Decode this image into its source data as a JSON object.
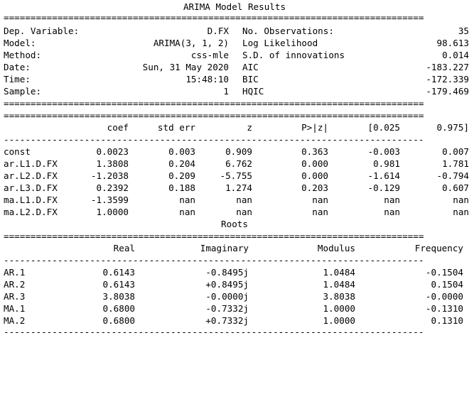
{
  "title": "ARIMA Model Results",
  "roots_title": "Roots",
  "double_rule": "==============================================================================",
  "single_rule": "------------------------------------------------------------------------------",
  "summary": {
    "left": [
      {
        "label": "Dep. Variable:",
        "value": "D.FX"
      },
      {
        "label": "Model:",
        "value": "ARIMA(3, 1, 2)"
      },
      {
        "label": "Method:",
        "value": "css-mle"
      },
      {
        "label": "Date:",
        "value": "Sun, 31 May 2020"
      },
      {
        "label": "Time:",
        "value": "15:48:10"
      },
      {
        "label": "Sample:",
        "value": "1"
      }
    ],
    "right": [
      {
        "label": "No. Observations:",
        "value": "35"
      },
      {
        "label": "Log Likelihood",
        "value": "98.613"
      },
      {
        "label": "S.D. of innovations",
        "value": "0.014"
      },
      {
        "label": "AIC",
        "value": "-183.227"
      },
      {
        "label": "BIC",
        "value": "-172.339"
      },
      {
        "label": "HQIC",
        "value": "-179.469"
      }
    ]
  },
  "coef_table": {
    "headers": [
      "coef",
      "std err",
      "z",
      "P>|z|",
      "[0.025",
      "0.975]"
    ],
    "rows": [
      {
        "name": "const",
        "values": [
          "0.0023",
          "0.003",
          "0.909",
          "0.363",
          "-0.003",
          "0.007"
        ]
      },
      {
        "name": "ar.L1.D.FX",
        "values": [
          "1.3808",
          "0.204",
          "6.762",
          "0.000",
          "0.981",
          "1.781"
        ]
      },
      {
        "name": "ar.L2.D.FX",
        "values": [
          "-1.2038",
          "0.209",
          "-5.755",
          "0.000",
          "-1.614",
          "-0.794"
        ]
      },
      {
        "name": "ar.L3.D.FX",
        "values": [
          "0.2392",
          "0.188",
          "1.274",
          "0.203",
          "-0.129",
          "0.607"
        ]
      },
      {
        "name": "ma.L1.D.FX",
        "values": [
          "-1.3599",
          "nan",
          "nan",
          "nan",
          "nan",
          "nan"
        ]
      },
      {
        "name": "ma.L2.D.FX",
        "values": [
          "1.0000",
          "nan",
          "nan",
          "nan",
          "nan",
          "nan"
        ]
      }
    ]
  },
  "roots_table": {
    "headers": [
      "Real",
      "Imaginary",
      "Modulus",
      "Frequency"
    ],
    "rows": [
      {
        "name": "AR.1",
        "values": [
          "0.6143",
          "-0.8495j",
          "1.0484",
          "-0.1504"
        ]
      },
      {
        "name": "AR.2",
        "values": [
          "0.6143",
          "+0.8495j",
          "1.0484",
          "0.1504"
        ]
      },
      {
        "name": "AR.3",
        "values": [
          "3.8038",
          "-0.0000j",
          "3.8038",
          "-0.0000"
        ]
      },
      {
        "name": "MA.1",
        "values": [
          "0.6800",
          "-0.7332j",
          "1.0000",
          "-0.1310"
        ]
      },
      {
        "name": "MA.2",
        "values": [
          "0.6800",
          "+0.7332j",
          "1.0000",
          "0.1310"
        ]
      }
    ]
  }
}
